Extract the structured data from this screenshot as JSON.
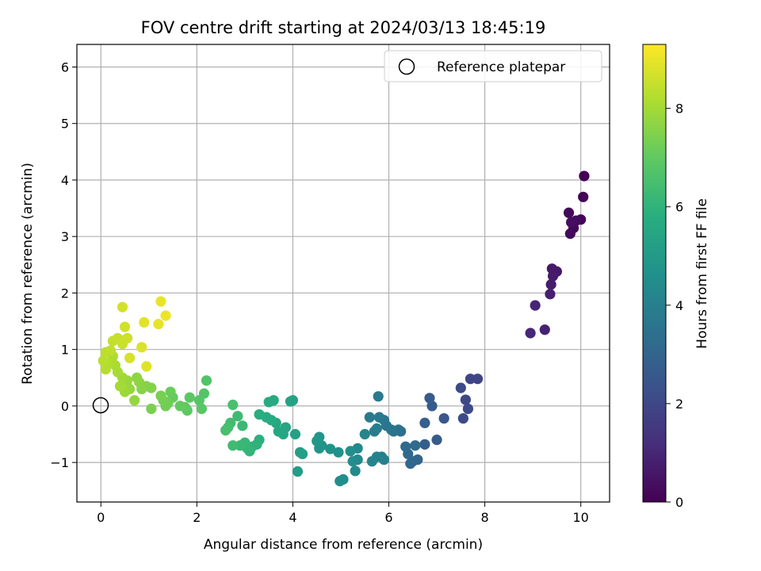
{
  "chart_data": {
    "type": "scatter",
    "title": "FOV centre drift starting at 2024/03/13 18:45:19",
    "xlabel": "Angular distance from reference (arcmin)",
    "ylabel": "Rotation from reference (arcmin)",
    "xlim": [
      -0.5,
      10.6
    ],
    "ylim": [
      -1.7,
      6.4
    ],
    "xticks": [
      "0",
      "2",
      "4",
      "6",
      "8",
      "10"
    ],
    "yticks": [
      "−1",
      "0",
      "1",
      "2",
      "3",
      "4",
      "5",
      "6"
    ],
    "grid": true,
    "legend": {
      "location": "top-right",
      "entries": [
        "Reference platepar"
      ]
    },
    "reference_point": {
      "name": "Reference platepar",
      "x": 0,
      "y": 0
    },
    "colorbar": {
      "label": "Hours from first FF file",
      "colormap": "viridis",
      "range": [
        0,
        9.3
      ],
      "ticks": [
        "0",
        "2",
        "4",
        "6",
        "8"
      ]
    },
    "points": [
      [
        10.07,
        4.07,
        0.0
      ],
      [
        10.05,
        3.7,
        0.05
      ],
      [
        10.0,
        3.3,
        0.1
      ],
      [
        9.85,
        3.15,
        0.15
      ],
      [
        9.78,
        3.05,
        0.2
      ],
      [
        9.75,
        3.42,
        0.25
      ],
      [
        9.9,
        3.28,
        0.3
      ],
      [
        9.8,
        3.25,
        0.35
      ],
      [
        9.5,
        2.38,
        0.6
      ],
      [
        9.4,
        2.43,
        0.65
      ],
      [
        9.42,
        2.3,
        0.7
      ],
      [
        9.38,
        2.15,
        0.75
      ],
      [
        9.36,
        1.98,
        0.8
      ],
      [
        9.25,
        1.35,
        0.9
      ],
      [
        9.05,
        1.78,
        0.95
      ],
      [
        8.95,
        1.29,
        1.0
      ],
      [
        7.85,
        0.48,
        1.9
      ],
      [
        7.7,
        0.48,
        1.95
      ],
      [
        7.6,
        0.11,
        2.0
      ],
      [
        7.65,
        -0.05,
        2.05
      ],
      [
        7.5,
        0.32,
        2.1
      ],
      [
        7.55,
        -0.22,
        2.15
      ],
      [
        7.15,
        -0.22,
        2.5
      ],
      [
        6.9,
        0.0,
        2.6
      ],
      [
        6.85,
        0.14,
        2.65
      ],
      [
        7.0,
        -0.6,
        2.7
      ],
      [
        6.75,
        -0.68,
        2.75
      ],
      [
        6.75,
        -0.3,
        2.8
      ],
      [
        6.6,
        -0.95,
        3.0
      ],
      [
        6.5,
        -0.98,
        3.05
      ],
      [
        6.45,
        -1.02,
        3.1
      ],
      [
        6.4,
        -0.85,
        3.15
      ],
      [
        6.35,
        -0.72,
        3.2
      ],
      [
        6.55,
        -0.7,
        3.25
      ],
      [
        6.25,
        -0.45,
        3.4
      ],
      [
        6.2,
        -0.42,
        3.45
      ],
      [
        6.1,
        -0.45,
        3.5
      ],
      [
        6.05,
        -0.42,
        3.55
      ],
      [
        5.95,
        -0.35,
        3.6
      ],
      [
        5.9,
        -0.25,
        3.65
      ],
      [
        5.8,
        -0.2,
        3.7
      ],
      [
        5.78,
        0.17,
        3.75
      ],
      [
        5.6,
        -0.2,
        3.8
      ],
      [
        5.7,
        -0.45,
        3.85
      ],
      [
        5.75,
        -0.4,
        3.9
      ],
      [
        5.85,
        -0.9,
        3.95
      ],
      [
        5.9,
        -0.95,
        4.0
      ],
      [
        5.75,
        -0.9,
        4.1
      ],
      [
        5.65,
        -0.98,
        4.15
      ],
      [
        5.5,
        -0.5,
        4.2
      ],
      [
        5.35,
        -0.75,
        4.3
      ],
      [
        5.35,
        -0.95,
        4.35
      ],
      [
        5.3,
        -1.15,
        4.4
      ],
      [
        5.25,
        -0.98,
        4.45
      ],
      [
        5.05,
        -1.3,
        4.5
      ],
      [
        4.98,
        -1.33,
        4.55
      ],
      [
        5.2,
        -0.8,
        4.6
      ],
      [
        4.95,
        -0.82,
        4.65
      ],
      [
        4.78,
        -0.76,
        4.7
      ],
      [
        4.6,
        -0.7,
        4.75
      ],
      [
        4.55,
        -0.75,
        4.8
      ],
      [
        4.55,
        -0.55,
        4.85
      ],
      [
        4.5,
        -0.62,
        4.9
      ],
      [
        4.1,
        -1.16,
        5.1
      ],
      [
        4.15,
        -0.82,
        5.15
      ],
      [
        4.2,
        -0.85,
        5.2
      ],
      [
        4.05,
        -0.5,
        5.25
      ],
      [
        4.0,
        0.1,
        5.3
      ],
      [
        3.95,
        0.08,
        5.35
      ],
      [
        3.85,
        -0.38,
        5.4
      ],
      [
        3.8,
        -0.5,
        5.45
      ],
      [
        3.65,
        -0.3,
        5.5
      ],
      [
        3.7,
        -0.45,
        5.55
      ],
      [
        3.6,
        0.1,
        5.6
      ],
      [
        3.5,
        0.07,
        5.65
      ],
      [
        3.55,
        -0.25,
        5.7
      ],
      [
        3.45,
        -0.2,
        5.75
      ],
      [
        3.3,
        -0.15,
        5.8
      ],
      [
        3.3,
        -0.6,
        5.9
      ],
      [
        3.25,
        -0.68,
        5.95
      ],
      [
        3.15,
        -0.72,
        6.0
      ],
      [
        3.1,
        -0.8,
        6.05
      ],
      [
        3.05,
        -0.75,
        6.1
      ],
      [
        3.0,
        -0.65,
        6.15
      ],
      [
        2.9,
        -0.7,
        6.2
      ],
      [
        2.95,
        -0.35,
        6.25
      ],
      [
        2.85,
        -0.18,
        6.3
      ],
      [
        2.75,
        -0.7,
        6.35
      ],
      [
        2.7,
        -0.3,
        6.4
      ],
      [
        2.65,
        -0.38,
        6.45
      ],
      [
        2.6,
        -0.43,
        6.5
      ],
      [
        2.75,
        0.02,
        6.55
      ],
      [
        2.2,
        0.45,
        6.7
      ],
      [
        2.15,
        0.22,
        6.75
      ],
      [
        2.05,
        0.1,
        6.8
      ],
      [
        2.1,
        -0.05,
        6.85
      ],
      [
        1.85,
        0.15,
        6.9
      ],
      [
        1.8,
        -0.08,
        6.95
      ],
      [
        1.75,
        -0.02,
        7.0
      ],
      [
        1.65,
        0.0,
        7.05
      ],
      [
        1.5,
        0.15,
        7.1
      ],
      [
        1.45,
        0.25,
        7.15
      ],
      [
        1.4,
        0.05,
        7.2
      ],
      [
        1.35,
        0.0,
        7.25
      ],
      [
        1.3,
        0.1,
        7.3
      ],
      [
        1.25,
        0.18,
        7.35
      ],
      [
        1.05,
        -0.05,
        7.4
      ],
      [
        1.05,
        0.32,
        7.5
      ],
      [
        0.95,
        0.35,
        7.55
      ],
      [
        0.85,
        0.3,
        7.6
      ],
      [
        0.8,
        0.42,
        7.65
      ],
      [
        0.75,
        0.5,
        7.7
      ],
      [
        0.7,
        0.1,
        7.75
      ],
      [
        0.6,
        0.3,
        7.8
      ],
      [
        0.55,
        0.45,
        7.85
      ],
      [
        0.5,
        0.25,
        7.9
      ],
      [
        0.45,
        0.5,
        7.95
      ],
      [
        0.4,
        0.35,
        8.0
      ],
      [
        0.35,
        0.6,
        8.05
      ],
      [
        0.3,
        0.72,
        8.1
      ],
      [
        0.25,
        0.88,
        8.15
      ],
      [
        0.15,
        0.75,
        8.2
      ],
      [
        0.1,
        0.65,
        8.25
      ],
      [
        0.05,
        0.8,
        8.3
      ],
      [
        0.1,
        0.95,
        8.35
      ],
      [
        0.2,
        0.98,
        8.4
      ],
      [
        0.25,
        1.15,
        8.45
      ],
      [
        0.35,
        1.2,
        8.5
      ],
      [
        0.45,
        1.1,
        8.55
      ],
      [
        0.55,
        1.2,
        8.6
      ],
      [
        0.5,
        1.4,
        8.65
      ],
      [
        0.45,
        1.75,
        8.7
      ],
      [
        0.6,
        0.85,
        8.75
      ],
      [
        0.85,
        1.04,
        8.8
      ],
      [
        0.95,
        0.7,
        8.85
      ],
      [
        0.9,
        1.48,
        8.9
      ],
      [
        1.2,
        1.45,
        8.95
      ],
      [
        1.25,
        1.85,
        9.0
      ],
      [
        1.35,
        1.6,
        9.05
      ]
    ]
  }
}
